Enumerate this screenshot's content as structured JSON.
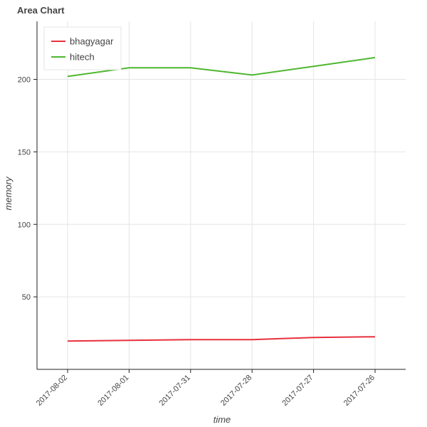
{
  "chart_data": {
    "type": "line",
    "title": "Area Chart",
    "xlabel": "time",
    "ylabel": "memory",
    "categories": [
      "2017-08-02",
      "2017-08-01",
      "2017-07-31",
      "2017-07-28",
      "2017-07-27",
      "2017-07-26"
    ],
    "ylim": [
      0,
      240
    ],
    "yticks": [
      50,
      100,
      150,
      200
    ],
    "grid": true,
    "legend_position": "top-left",
    "series": [
      {
        "name": "bhagyagar",
        "color": "#e8303d",
        "values": [
          19.5,
          20,
          20.5,
          20.5,
          22,
          22.5
        ]
      },
      {
        "name": "hitech",
        "color": "#4fb72f",
        "values": [
          202,
          208,
          208,
          203,
          209,
          215
        ]
      }
    ]
  }
}
